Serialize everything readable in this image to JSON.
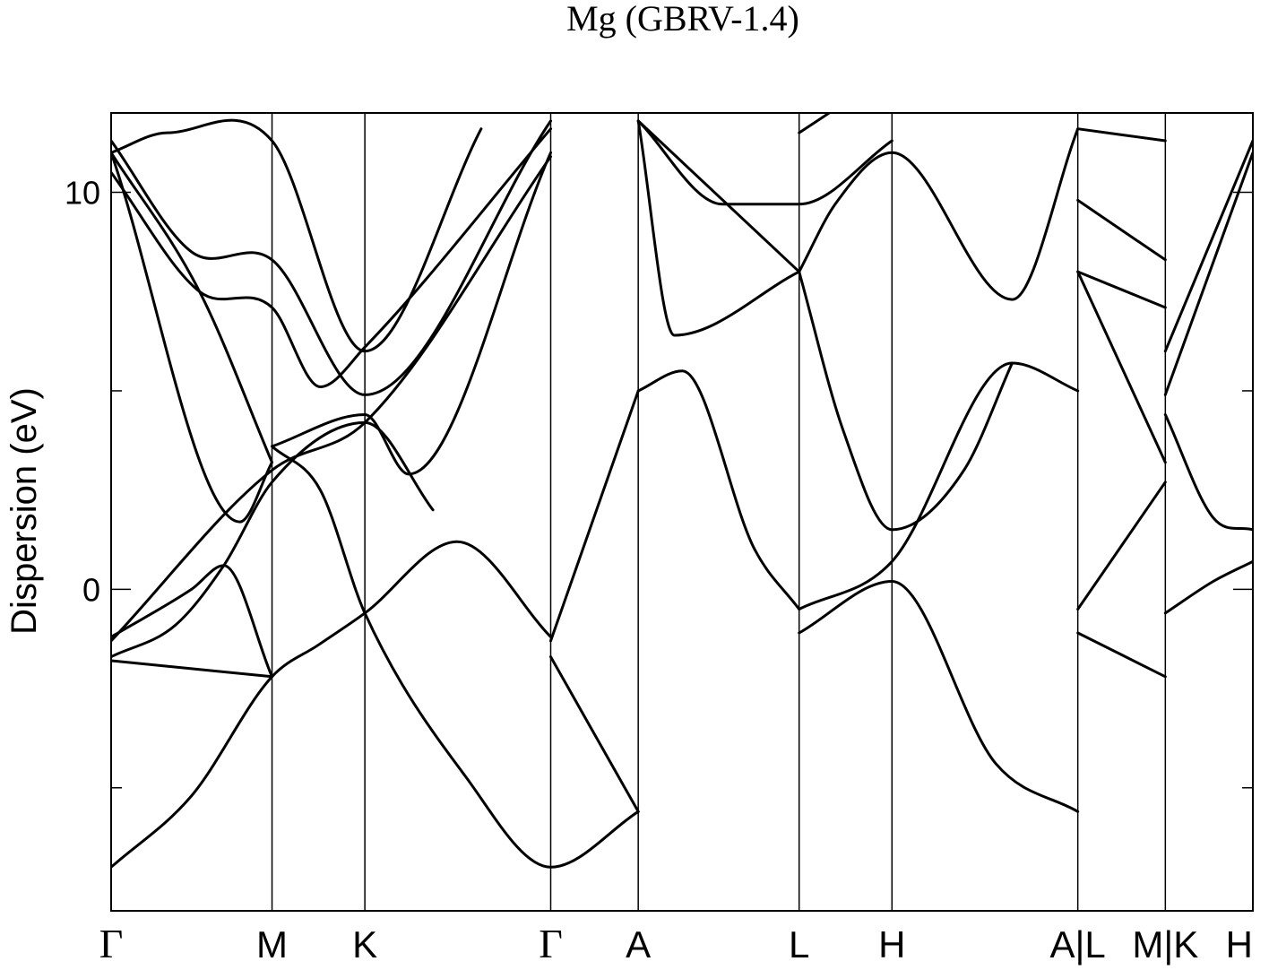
{
  "chart_data": {
    "type": "line",
    "title": "Mg (GBRV-1.4)",
    "ylabel": "Dispersion (eV)",
    "xlabel": "",
    "ylim": [
      -8.1,
      12.0
    ],
    "yticks": [
      0,
      10
    ],
    "ytick_labels": [
      "0",
      "10"
    ],
    "minor_yticks": [
      -5,
      5
    ],
    "grid": false,
    "kpoints": [
      {
        "label": "Γ",
        "x": 0.0
      },
      {
        "label": "M",
        "x": 1.0
      },
      {
        "label": "K",
        "x": 1.577
      },
      {
        "label": "Γ",
        "x": 2.732
      },
      {
        "label": "A",
        "x": 3.276
      },
      {
        "label": "L",
        "x": 4.276
      },
      {
        "label": "H",
        "x": 4.853
      },
      {
        "label": "A|L",
        "x": 6.008
      },
      {
        "label": "M|K",
        "x": 6.552
      },
      {
        "label": "H",
        "x": 7.096
      }
    ],
    "series": [
      {
        "values": [
          [
            0,
            -7.0
          ],
          [
            0.5,
            -5.2
          ],
          [
            1.0,
            -2.2
          ],
          [
            1.289,
            -1.4
          ],
          [
            1.577,
            -0.6
          ],
          [
            2.15,
            1.2
          ],
          [
            2.732,
            -1.2
          ]
        ]
      },
      {
        "values": [
          [
            0,
            -1.2
          ],
          [
            0.5,
            0.0
          ],
          [
            0.7,
            0.6
          ],
          [
            1.0,
            -2.2
          ]
        ]
      },
      {
        "values": [
          [
            0,
            -1.7
          ],
          [
            0.4,
            -0.9
          ],
          [
            0.7,
            0.6
          ],
          [
            1.0,
            2.7
          ],
          [
            1.577,
            4.2
          ],
          [
            2.0,
            2.0
          ]
        ]
      },
      {
        "values": [
          [
            0,
            -1.8
          ],
          [
            1.0,
            -2.2
          ]
        ]
      },
      {
        "values": [
          [
            0,
            -1.3
          ],
          [
            1.0,
            3.0
          ],
          [
            1.577,
            4.2
          ],
          [
            2.732,
            10.9
          ]
        ]
      },
      {
        "values": [
          [
            1.0,
            3.6
          ],
          [
            1.3,
            2.5
          ],
          [
            1.577,
            -0.6
          ],
          [
            2.2,
            -4.7
          ],
          [
            2.732,
            -7.0
          ],
          [
            3.276,
            -5.6
          ]
        ]
      },
      {
        "values": [
          [
            1.0,
            3.6
          ],
          [
            1.577,
            4.4
          ],
          [
            1.85,
            2.9
          ],
          [
            2.732,
            11.0
          ]
        ]
      },
      {
        "values": [
          [
            0,
            11.0
          ],
          [
            0.8,
            1.7
          ],
          [
            1.0,
            3.2
          ]
        ]
      },
      {
        "values": [
          [
            0,
            11.0
          ],
          [
            0.55,
            7.5
          ],
          [
            1.0,
            3.2
          ]
        ]
      },
      {
        "values": [
          [
            0,
            10.5
          ],
          [
            0.55,
            7.5
          ],
          [
            1.0,
            7.1
          ],
          [
            1.3,
            5.1
          ],
          [
            1.577,
            6.1
          ],
          [
            2.732,
            11.6
          ]
        ]
      },
      {
        "values": [
          [
            0,
            11.3
          ],
          [
            0.5,
            8.5
          ],
          [
            1.0,
            8.3
          ],
          [
            1.577,
            4.9
          ],
          [
            2.732,
            11.8
          ]
        ]
      },
      {
        "values": [
          [
            0,
            11.0
          ],
          [
            0.35,
            11.5
          ],
          [
            1.0,
            11.3
          ],
          [
            1.577,
            6.0
          ],
          [
            2.3,
            11.6
          ]
        ]
      },
      {
        "values": [
          [
            2.732,
            -1.7
          ],
          [
            3.276,
            -5.6
          ]
        ]
      },
      {
        "values": [
          [
            2.732,
            -1.3
          ],
          [
            3.276,
            5.0
          ]
        ]
      },
      {
        "values": [
          [
            3.276,
            5.0
          ],
          [
            3.55,
            5.5
          ],
          [
            4.0,
            1.0
          ],
          [
            4.276,
            -0.5
          ]
        ]
      },
      {
        "values": [
          [
            3.276,
            11.8
          ],
          [
            4.276,
            8.0
          ]
        ]
      },
      {
        "values": [
          [
            3.276,
            11.8
          ],
          [
            3.5,
            6.4
          ],
          [
            4.276,
            8.0
          ]
        ]
      },
      {
        "values": [
          [
            3.276,
            11.8
          ],
          [
            3.8,
            9.7
          ],
          [
            4.276,
            9.7
          ],
          [
            4.853,
            11.3
          ]
        ]
      },
      {
        "values": [
          [
            4.276,
            -1.1
          ],
          [
            4.853,
            0.2
          ],
          [
            5.5,
            -4.4
          ],
          [
            6.008,
            -5.6
          ]
        ]
      },
      {
        "values": [
          [
            4.276,
            -0.5
          ],
          [
            4.853,
            0.7
          ],
          [
            5.6,
            5.7
          ],
          [
            6.008,
            5.0
          ]
        ]
      },
      {
        "values": [
          [
            4.276,
            8.0
          ],
          [
            4.55,
            4.0
          ],
          [
            4.853,
            1.5
          ],
          [
            5.3,
            3.0
          ],
          [
            5.6,
            5.7
          ]
        ]
      },
      {
        "values": [
          [
            4.276,
            8.0
          ],
          [
            4.5,
            9.7
          ],
          [
            4.853,
            11.0
          ],
          [
            5.6,
            7.3
          ],
          [
            6.008,
            11.6
          ]
        ]
      },
      {
        "values": [
          [
            4.276,
            11.5
          ],
          [
            4.5,
            12.1
          ]
        ]
      },
      {
        "values": [
          [
            6.008,
            -1.1
          ],
          [
            6.552,
            -2.2
          ]
        ]
      },
      {
        "values": [
          [
            6.008,
            -0.5
          ],
          [
            6.552,
            2.7
          ]
        ]
      },
      {
        "values": [
          [
            6.008,
            8.0
          ],
          [
            6.552,
            3.2
          ]
        ]
      },
      {
        "values": [
          [
            6.008,
            8.0
          ],
          [
            6.552,
            7.1
          ]
        ]
      },
      {
        "values": [
          [
            6.008,
            9.8
          ],
          [
            6.552,
            8.3
          ]
        ]
      },
      {
        "values": [
          [
            6.008,
            11.6
          ],
          [
            6.552,
            11.3
          ]
        ]
      },
      {
        "values": [
          [
            6.552,
            -0.6
          ],
          [
            6.85,
            0.2
          ],
          [
            7.096,
            0.7
          ]
        ]
      },
      {
        "values": [
          [
            6.552,
            4.9
          ],
          [
            7.096,
            11.0
          ]
        ]
      },
      {
        "values": [
          [
            6.552,
            6.0
          ],
          [
            7.096,
            11.3
          ]
        ]
      },
      {
        "values": [
          [
            6.552,
            4.4
          ],
          [
            6.85,
            1.8
          ],
          [
            7.096,
            1.5
          ]
        ]
      }
    ]
  }
}
